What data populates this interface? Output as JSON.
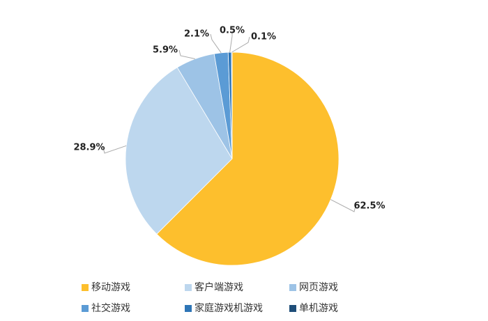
{
  "chart_data": {
    "type": "pie",
    "categories": [
      "移动游戏",
      "客户端游戏",
      "网页游戏",
      "社交游戏",
      "家庭游戏机游戏",
      "单机游戏"
    ],
    "values": [
      62.5,
      28.9,
      5.9,
      2.1,
      0.5,
      0.1
    ],
    "value_labels": [
      "62.5%",
      "28.9%",
      "5.9%",
      "2.1%",
      "0.5%",
      "0.1%"
    ],
    "colors": [
      "#FDBF2D",
      "#BDD7EE",
      "#9DC3E6",
      "#5B9BD5",
      "#2E75B6",
      "#1F4E79"
    ],
    "legend": "bottom"
  }
}
